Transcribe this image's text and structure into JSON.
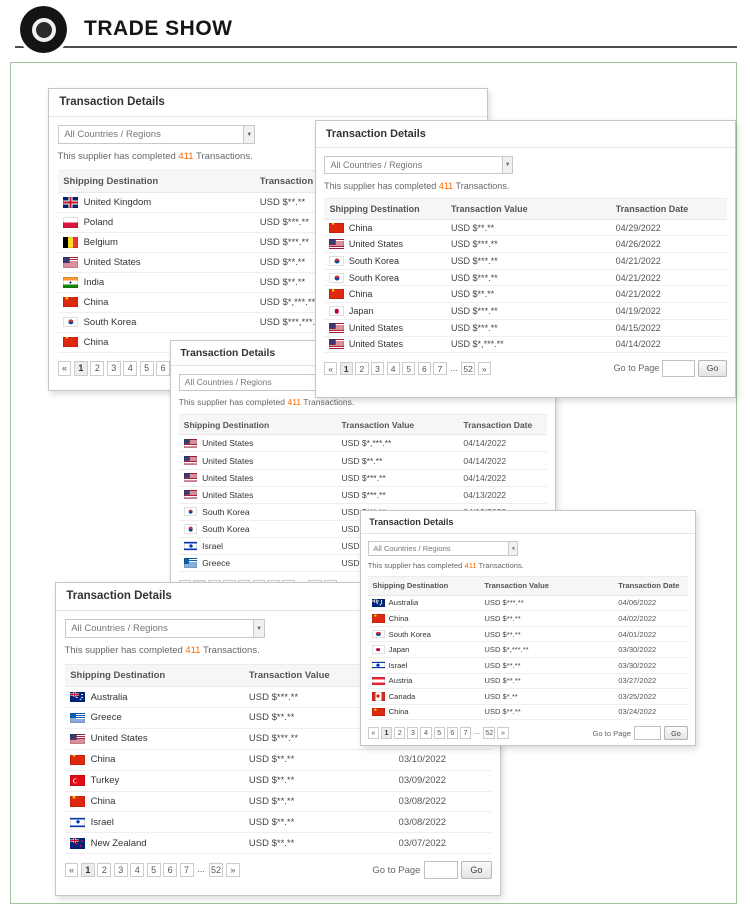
{
  "header": {
    "brand": "TRADE SHOW"
  },
  "common": {
    "title": "Transaction Details",
    "dropdown_value": "All Countries / Regions",
    "supplier_prefix": "This supplier has completed ",
    "supplier_count": "411",
    "supplier_suffix": " Transactions.",
    "columns": {
      "destination": "Shipping Destination",
      "value": "Transaction Value",
      "date": "Transaction Date"
    },
    "pagination": {
      "prev": "«",
      "pages": [
        "1",
        "2",
        "3",
        "4",
        "5",
        "6",
        "7"
      ],
      "ellipsis": "...",
      "last": "52",
      "next": "»",
      "goto_label": "Go to Page",
      "go": "Go"
    }
  },
  "panels": [
    {
      "id": "top-left",
      "rows": [
        {
          "flag": "united-kingdom",
          "country": "United Kingdom",
          "value": "USD $**.**",
          "date": ""
        },
        {
          "flag": "poland",
          "country": "Poland",
          "value": "USD $***.**",
          "date": ""
        },
        {
          "flag": "belgium",
          "country": "Belgium",
          "value": "USD $***.**",
          "date": ""
        },
        {
          "flag": "united-states",
          "country": "United States",
          "value": "USD $**.**",
          "date": ""
        },
        {
          "flag": "india",
          "country": "India",
          "value": "USD $**.**",
          "date": ""
        },
        {
          "flag": "china",
          "country": "China",
          "value": "USD $*,***.**",
          "date": ""
        },
        {
          "flag": "south-korea",
          "country": "South Korea",
          "value": "USD $***,***.**",
          "date": ""
        },
        {
          "flag": "china",
          "country": "China",
          "value": "",
          "date": ""
        }
      ]
    },
    {
      "id": "top-right",
      "rows": [
        {
          "flag": "china",
          "country": "China",
          "value": "USD $**.**",
          "date": "04/29/2022"
        },
        {
          "flag": "united-states",
          "country": "United States",
          "value": "USD $***.**",
          "date": "04/26/2022"
        },
        {
          "flag": "south-korea",
          "country": "South Korea",
          "value": "USD $***.**",
          "date": "04/21/2022"
        },
        {
          "flag": "south-korea",
          "country": "South Korea",
          "value": "USD $***.**",
          "date": "04/21/2022"
        },
        {
          "flag": "china",
          "country": "China",
          "value": "USD $**.**",
          "date": "04/21/2022"
        },
        {
          "flag": "japan",
          "country": "Japan",
          "value": "USD $***.**",
          "date": "04/19/2022"
        },
        {
          "flag": "united-states",
          "country": "United States",
          "value": "USD $***.**",
          "date": "04/15/2022"
        },
        {
          "flag": "united-states",
          "country": "United States",
          "value": "USD $*,***.**",
          "date": "04/14/2022"
        }
      ]
    },
    {
      "id": "middle",
      "rows": [
        {
          "flag": "united-states",
          "country": "United States",
          "value": "USD $*,***.**",
          "date": "04/14/2022"
        },
        {
          "flag": "united-states",
          "country": "United States",
          "value": "USD $**.**",
          "date": "04/14/2022"
        },
        {
          "flag": "united-states",
          "country": "United States",
          "value": "USD $***.**",
          "date": "04/14/2022"
        },
        {
          "flag": "united-states",
          "country": "United States",
          "value": "USD $***.**",
          "date": "04/13/2022"
        },
        {
          "flag": "south-korea",
          "country": "South Korea",
          "value": "USD $***.**",
          "date": "04/12/2022"
        },
        {
          "flag": "south-korea",
          "country": "South Korea",
          "value": "USD $**.**",
          "date": ""
        },
        {
          "flag": "israel",
          "country": "Israel",
          "value": "USD $***.**",
          "date": ""
        },
        {
          "flag": "greece",
          "country": "Greece",
          "value": "USD $**.**",
          "date": ""
        }
      ]
    },
    {
      "id": "bottom-right",
      "rows": [
        {
          "flag": "australia",
          "country": "Australia",
          "value": "USD $***.**",
          "date": "04/06/2022"
        },
        {
          "flag": "china",
          "country": "China",
          "value": "USD $**.**",
          "date": "04/02/2022"
        },
        {
          "flag": "south-korea",
          "country": "South Korea",
          "value": "USD $**.**",
          "date": "04/01/2022"
        },
        {
          "flag": "japan",
          "country": "Japan",
          "value": "USD $*,***.**",
          "date": "03/30/2022"
        },
        {
          "flag": "israel",
          "country": "Israel",
          "value": "USD $**.**",
          "date": "03/30/2022"
        },
        {
          "flag": "austria",
          "country": "Austria",
          "value": "USD $**.**",
          "date": "03/27/2022"
        },
        {
          "flag": "canada",
          "country": "Canada",
          "value": "USD $*.**",
          "date": "03/25/2022"
        },
        {
          "flag": "china",
          "country": "China",
          "value": "USD $**.**",
          "date": "03/24/2022"
        }
      ]
    },
    {
      "id": "bottom-left",
      "rows": [
        {
          "flag": "australia",
          "country": "Australia",
          "value": "USD $***.**",
          "date": ""
        },
        {
          "flag": "greece",
          "country": "Greece",
          "value": "USD $**.**",
          "date": ""
        },
        {
          "flag": "united-states",
          "country": "United States",
          "value": "USD $***.**",
          "date": ""
        },
        {
          "flag": "china",
          "country": "China",
          "value": "USD $**.**",
          "date": "03/10/2022"
        },
        {
          "flag": "turkey",
          "country": "Turkey",
          "value": "USD $**.**",
          "date": "03/09/2022"
        },
        {
          "flag": "china",
          "country": "China",
          "value": "USD $**.**",
          "date": "03/08/2022"
        },
        {
          "flag": "israel",
          "country": "Israel",
          "value": "USD $**.**",
          "date": "03/08/2022"
        },
        {
          "flag": "new-zealand",
          "country": "New Zealand",
          "value": "USD $**.**",
          "date": "03/07/2022"
        }
      ]
    }
  ]
}
